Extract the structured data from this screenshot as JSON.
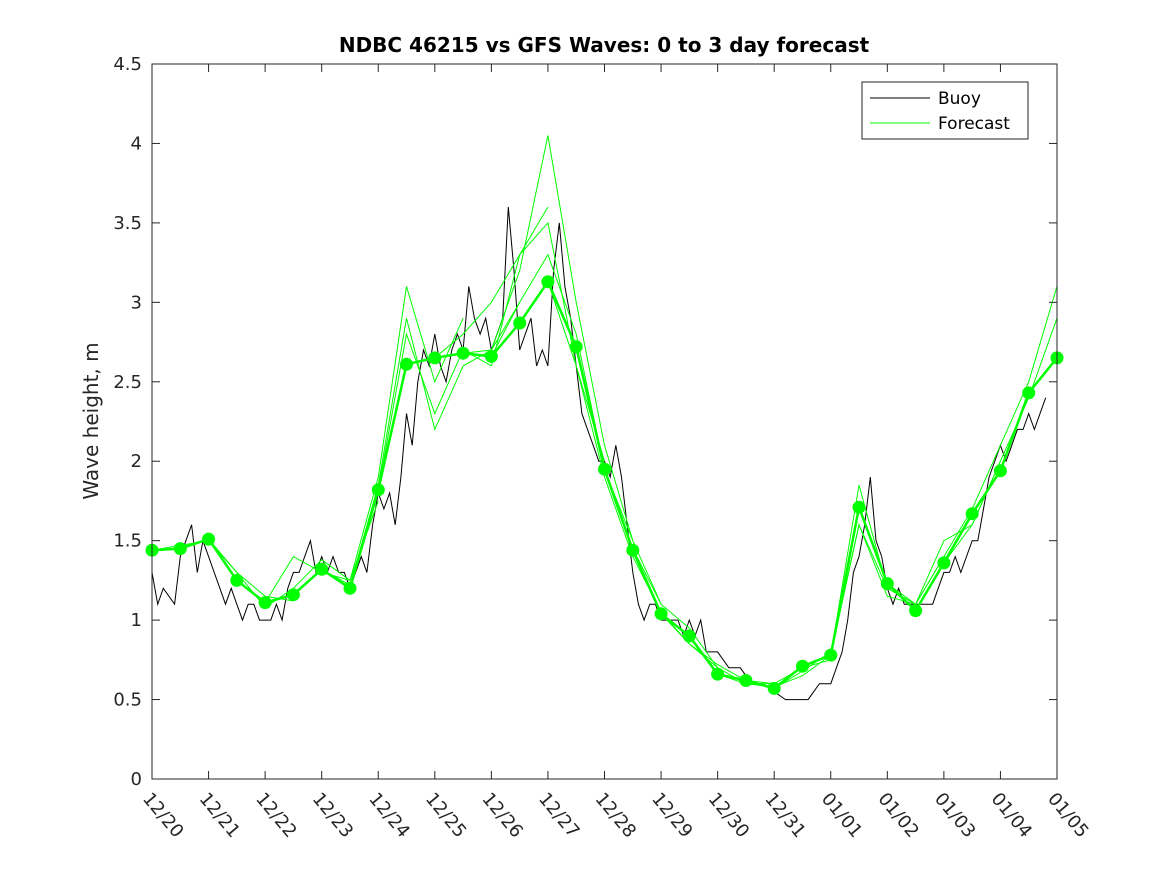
{
  "chart_data": {
    "type": "line",
    "title": "NDBC 46215 vs GFS Waves: 0 to 3 day forecast",
    "xlabel": "",
    "ylabel": "Wave height, m",
    "x_units": "days since 12/20",
    "xlim": [
      0,
      16
    ],
    "ylim": [
      0,
      4.5
    ],
    "y_ticks": [
      "0",
      "0.5",
      "1",
      "1.5",
      "2",
      "2.5",
      "3",
      "3.5",
      "4",
      "4.5"
    ],
    "x_tick_labels": [
      "12/20",
      "12/21",
      "12/22",
      "12/23",
      "12/24",
      "12/25",
      "12/26",
      "12/27",
      "12/28",
      "12/29",
      "12/30",
      "12/31",
      "01/01",
      "01/02",
      "01/03",
      "01/04",
      "01/05"
    ],
    "legend": {
      "position": "top-right",
      "entries": [
        {
          "label": "Buoy",
          "color": "#000000"
        },
        {
          "label": "Forecast",
          "color": "#00ff00"
        }
      ]
    },
    "buoy_color": "#000000",
    "forecast_color": "#00ff00",
    "series": [
      {
        "name": "Buoy",
        "x": [
          0,
          0.1,
          0.2,
          0.4,
          0.5,
          0.6,
          0.7,
          0.8,
          0.9,
          1.0,
          1.1,
          1.2,
          1.3,
          1.4,
          1.5,
          1.6,
          1.7,
          1.8,
          1.9,
          2.0,
          2.1,
          2.2,
          2.3,
          2.4,
          2.5,
          2.6,
          2.7,
          2.8,
          2.9,
          3.0,
          3.1,
          3.2,
          3.3,
          3.4,
          3.5,
          3.6,
          3.7,
          3.8,
          3.9,
          4.0,
          4.1,
          4.2,
          4.3,
          4.4,
          4.5,
          4.6,
          4.7,
          4.8,
          4.9,
          5.0,
          5.1,
          5.2,
          5.3,
          5.4,
          5.5,
          5.6,
          5.7,
          5.8,
          5.9,
          6.0,
          6.1,
          6.2,
          6.3,
          6.4,
          6.5,
          6.6,
          6.7,
          6.8,
          6.9,
          7.0,
          7.1,
          7.2,
          7.3,
          7.4,
          7.5,
          7.6,
          7.7,
          7.8,
          7.9,
          8.0,
          8.1,
          8.2,
          8.3,
          8.4,
          8.5,
          8.6,
          8.7,
          8.8,
          8.9,
          9.0,
          9.1,
          9.2,
          9.3,
          9.4,
          9.5,
          9.6,
          9.7,
          9.8,
          9.9,
          10.0,
          10.2,
          10.4,
          10.6,
          10.8,
          11.0,
          11.2,
          11.4,
          11.6,
          11.8,
          12.0,
          12.1,
          12.2,
          12.3,
          12.4,
          12.5,
          12.6,
          12.7,
          12.8,
          12.9,
          13.0,
          13.1,
          13.2,
          13.3,
          13.4,
          13.5,
          13.6,
          13.7,
          13.8,
          13.9,
          14.0,
          14.1,
          14.2,
          14.3,
          14.4,
          14.5,
          14.6,
          14.7,
          14.8,
          14.9,
          15.0,
          15.1,
          15.2,
          15.3,
          15.4,
          15.5,
          15.6,
          15.7,
          15.8
        ],
        "values": [
          1.3,
          1.1,
          1.2,
          1.1,
          1.4,
          1.5,
          1.6,
          1.3,
          1.5,
          1.4,
          1.3,
          1.2,
          1.1,
          1.2,
          1.1,
          1.0,
          1.1,
          1.1,
          1.0,
          1.0,
          1.0,
          1.1,
          1.0,
          1.2,
          1.3,
          1.3,
          1.4,
          1.5,
          1.3,
          1.4,
          1.3,
          1.4,
          1.3,
          1.3,
          1.2,
          1.3,
          1.4,
          1.3,
          1.6,
          1.8,
          1.7,
          1.8,
          1.6,
          1.9,
          2.3,
          2.1,
          2.5,
          2.7,
          2.6,
          2.8,
          2.6,
          2.5,
          2.7,
          2.8,
          2.7,
          3.1,
          2.9,
          2.8,
          2.9,
          2.7,
          2.8,
          2.9,
          3.6,
          3.2,
          2.7,
          2.8,
          2.9,
          2.6,
          2.7,
          2.6,
          3.2,
          3.5,
          3.1,
          2.9,
          2.6,
          2.3,
          2.2,
          2.1,
          2.0,
          2.0,
          1.9,
          2.1,
          1.9,
          1.6,
          1.3,
          1.1,
          1.0,
          1.1,
          1.1,
          1.0,
          1.0,
          1.0,
          1.0,
          0.9,
          1.0,
          0.9,
          1.0,
          0.8,
          0.8,
          0.8,
          0.7,
          0.7,
          0.6,
          0.6,
          0.55,
          0.5,
          0.5,
          0.5,
          0.6,
          0.6,
          0.7,
          0.8,
          1.0,
          1.3,
          1.4,
          1.6,
          1.9,
          1.5,
          1.4,
          1.2,
          1.1,
          1.2,
          1.1,
          1.1,
          1.1,
          1.1,
          1.1,
          1.1,
          1.2,
          1.3,
          1.3,
          1.4,
          1.3,
          1.4,
          1.5,
          1.5,
          1.7,
          1.9,
          2.0,
          2.1,
          2.0,
          2.1,
          2.2,
          2.2,
          2.3,
          2.2,
          2.3,
          2.4
        ]
      },
      {
        "name": "Forecast",
        "x": [
          0,
          0.5,
          1.0,
          1.5,
          2.0,
          2.5,
          3.0,
          3.5,
          4.0,
          4.5,
          5.0,
          5.5,
          6.0,
          6.5,
          7.0,
          7.5,
          8.0,
          8.5,
          9.0,
          9.5,
          10.0,
          10.5,
          11.0,
          11.5,
          12.0,
          12.5,
          13.0,
          13.5,
          14.0,
          14.5,
          15.0,
          15.5,
          16.0
        ],
        "values": [
          1.44,
          1.45,
          1.51,
          1.25,
          1.11,
          1.16,
          1.32,
          1.2,
          1.82,
          2.61,
          2.65,
          2.68,
          2.66,
          2.87,
          3.13,
          2.72,
          1.95,
          1.44,
          1.04,
          0.9,
          0.66,
          0.62,
          0.57,
          0.71,
          0.78,
          1.71,
          1.23,
          1.06,
          1.36,
          1.67,
          1.94,
          2.43,
          2.65
        ]
      }
    ],
    "forecast_runs": [
      {
        "x": [
          0,
          0.5,
          1.0,
          1.5,
          2.0,
          2.5
        ],
        "values": [
          1.44,
          1.47,
          1.5,
          1.3,
          1.15,
          1.12
        ]
      },
      {
        "x": [
          1.0,
          1.5,
          2.0,
          2.5,
          3.0,
          3.5,
          4.0
        ],
        "values": [
          1.51,
          1.3,
          1.08,
          1.2,
          1.38,
          1.25,
          1.75
        ]
      },
      {
        "x": [
          2.0,
          2.5,
          3.0,
          3.5,
          4.0,
          4.5,
          5.0,
          5.5
        ],
        "values": [
          1.11,
          1.4,
          1.3,
          1.25,
          1.9,
          3.1,
          2.5,
          2.9
        ]
      },
      {
        "x": [
          3.0,
          3.5,
          4.0,
          4.5,
          5.0,
          5.5,
          6.0,
          6.5
        ],
        "values": [
          1.32,
          1.22,
          1.85,
          2.9,
          2.2,
          2.6,
          2.7,
          3.0
        ]
      },
      {
        "x": [
          4.0,
          4.5,
          5.0,
          5.5,
          6.0,
          6.5,
          7.0
        ],
        "values": [
          1.82,
          2.8,
          2.3,
          2.7,
          2.6,
          3.3,
          3.6
        ]
      },
      {
        "x": [
          5.0,
          5.5,
          6.0,
          6.5,
          7.0,
          7.5,
          8.0
        ],
        "values": [
          2.65,
          2.8,
          3.0,
          3.3,
          3.5,
          2.6,
          2.0
        ]
      },
      {
        "x": [
          5.5,
          6.0,
          6.5,
          7.0,
          7.5,
          8.0,
          8.5
        ],
        "values": [
          2.68,
          2.7,
          3.2,
          4.05,
          3.0,
          2.1,
          1.5
        ]
      },
      {
        "x": [
          6.0,
          6.5,
          7.0,
          7.5,
          8.0,
          8.5,
          9.0
        ],
        "values": [
          2.66,
          3.0,
          3.3,
          2.8,
          1.95,
          1.45,
          1.1
        ]
      },
      {
        "x": [
          7.0,
          7.5,
          8.0,
          8.5,
          9.0,
          9.5,
          10.0
        ],
        "values": [
          3.13,
          2.6,
          1.9,
          1.4,
          1.05,
          0.85,
          0.7
        ]
      },
      {
        "x": [
          8.0,
          8.5,
          9.0,
          9.5,
          10.0,
          10.5,
          11.0
        ],
        "values": [
          1.95,
          1.5,
          1.1,
          0.95,
          0.7,
          0.6,
          0.6
        ]
      },
      {
        "x": [
          9.0,
          9.5,
          10.0,
          10.5,
          11.0,
          11.5,
          12.0
        ],
        "values": [
          1.04,
          0.85,
          0.72,
          0.62,
          0.6,
          0.7,
          0.75
        ]
      },
      {
        "x": [
          10.0,
          10.5,
          11.0,
          11.5,
          12.0,
          12.5,
          13.0
        ],
        "values": [
          0.66,
          0.6,
          0.58,
          0.65,
          0.78,
          1.85,
          1.2
        ]
      },
      {
        "x": [
          11.0,
          11.5,
          12.0,
          12.5,
          13.0,
          13.5,
          14.0
        ],
        "values": [
          0.57,
          0.68,
          0.8,
          1.6,
          1.15,
          1.1,
          1.4
        ]
      },
      {
        "x": [
          12.0,
          12.5,
          13.0,
          13.5,
          14.0,
          14.5,
          15.0
        ],
        "values": [
          0.78,
          1.6,
          1.2,
          1.1,
          1.5,
          1.6,
          2.0
        ]
      },
      {
        "x": [
          13.0,
          13.5,
          14.0,
          14.5,
          15.0,
          15.5,
          16.0
        ],
        "values": [
          1.23,
          1.1,
          1.4,
          1.7,
          2.1,
          2.5,
          3.1
        ]
      },
      {
        "x": [
          14.0,
          14.5,
          15.0,
          15.5,
          16.0
        ],
        "values": [
          1.36,
          1.6,
          2.0,
          2.4,
          2.9
        ]
      }
    ]
  }
}
